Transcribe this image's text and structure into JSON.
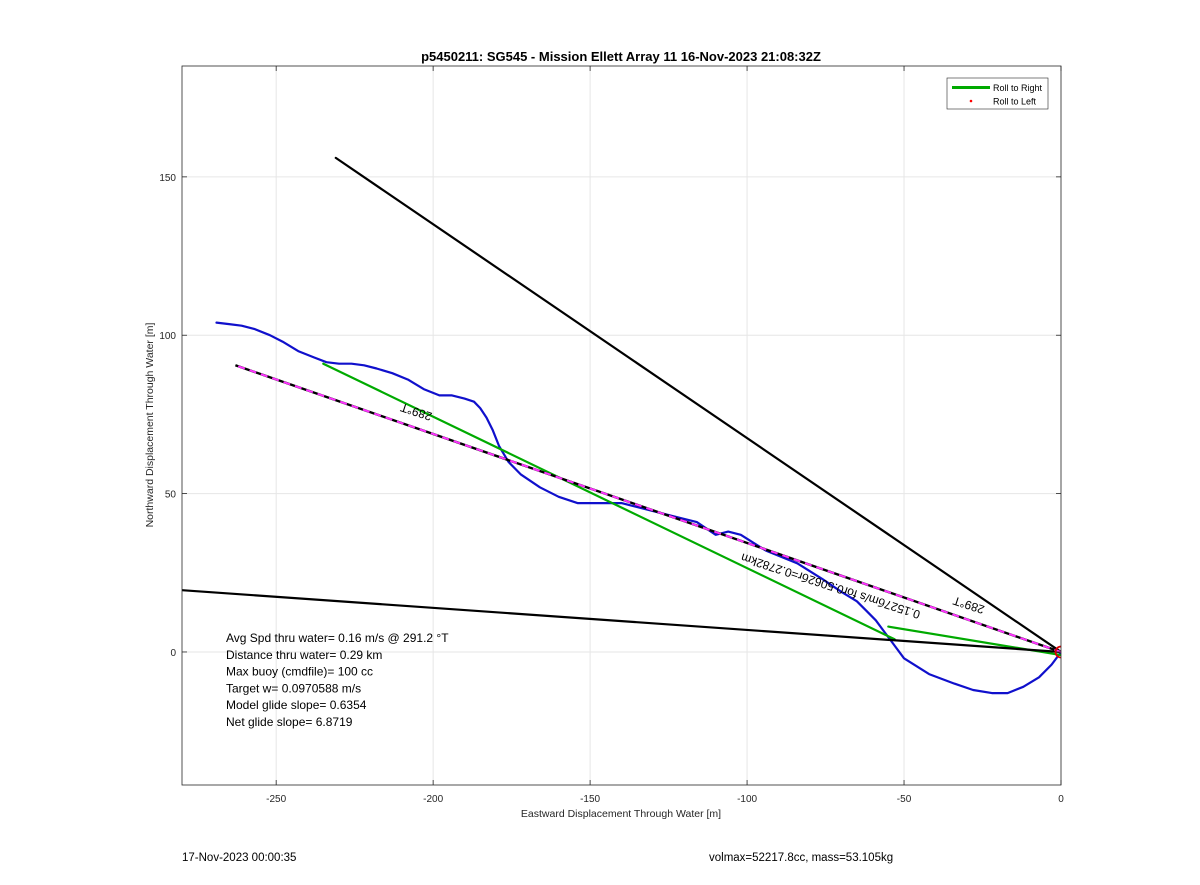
{
  "chart_data": {
    "type": "line",
    "title": "p5450211: SG545 - Mission Ellett Array 11 16-Nov-2023 21:08:32Z",
    "xlabel": "Eastward Displacement Through Water [m]",
    "ylabel": "Northward Displacement Through Water [m]",
    "xlim": [
      -280,
      0
    ],
    "ylim": [
      -42,
      185
    ],
    "xticks": [
      -250,
      -200,
      -150,
      -100,
      -50,
      0
    ],
    "xtick_labels": [
      "-250",
      "-200",
      "-150",
      "-100",
      "-50",
      "0"
    ],
    "yticks": [
      0,
      50,
      100,
      150
    ],
    "ytick_labels": [
      "0",
      "50",
      "100",
      "150"
    ],
    "grid": true,
    "legend": {
      "placement": "top-right",
      "entries": [
        {
          "label": "Roll to Right",
          "color": "#00aa00",
          "style": "solid"
        },
        {
          "label": "Roll to Left",
          "color": "#ff0000",
          "style": "dot"
        }
      ]
    },
    "series": [
      {
        "name": "",
        "color": "#1010cc",
        "style": "solid",
        "x": [
          0,
          -3,
          -7,
          -12,
          -17,
          -22,
          -28,
          -34,
          -42,
          -50,
          -53,
          -56,
          -59,
          -62,
          -65,
          -70,
          -76,
          -84,
          -94,
          -102,
          -106,
          -110,
          -116,
          -124,
          -132,
          -140,
          -148,
          -154,
          -160,
          -166,
          -172,
          -176,
          -179,
          -181,
          -183,
          -185,
          -187,
          -190,
          -194,
          -198,
          -203,
          -208,
          -213,
          -218,
          -222,
          -226,
          -230,
          -234,
          -238,
          -243,
          -248,
          -252,
          -257,
          -261,
          -265,
          -269
        ],
        "y": [
          0,
          -4,
          -8,
          -11,
          -13,
          -13,
          -12,
          -10,
          -7,
          -2,
          2,
          6,
          10,
          13,
          16,
          19,
          23,
          28,
          32,
          37,
          38,
          37,
          41,
          43,
          45,
          47,
          47,
          47,
          49,
          52,
          56,
          60,
          65,
          70,
          74,
          77,
          79,
          80,
          81,
          81,
          83,
          86,
          88,
          89.5,
          90.5,
          91,
          91,
          91.5,
          93,
          95,
          98,
          100,
          102,
          103,
          103.5,
          104
        ]
      },
      {
        "name": "",
        "color": "#00aa00",
        "style": "solid",
        "x": [
          0,
          -55
        ],
        "y": [
          -1,
          8
        ]
      },
      {
        "name": "",
        "color": "#00aa00",
        "style": "solid",
        "x": [
          -53,
          -235
        ],
        "y": [
          4,
          91
        ]
      },
      {
        "name": "",
        "color": "#000000",
        "style": "solid",
        "x": [
          0,
          -231
        ],
        "y": [
          0,
          156
        ]
      },
      {
        "name": "",
        "color": "#000000",
        "style": "solid",
        "x": [
          0,
          -280
        ],
        "y": [
          0,
          19.5
        ]
      },
      {
        "name": "",
        "color": "#000000",
        "style": "dashed-magenta",
        "x": [
          0,
          -263
        ],
        "y": [
          0,
          90.5
        ]
      }
    ],
    "marker": {
      "x": 0,
      "y": 0,
      "color": "#dd0000",
      "shape": "circle"
    },
    "line_labels": [
      {
        "text": "289°T",
        "x": -205,
        "y": 77,
        "angle": 18
      },
      {
        "text": "289°T",
        "x": -29,
        "y": 16,
        "angle": 18
      },
      {
        "text": "0.1527бm/s for0.5062бr=0.2782km",
        "x": -73,
        "y": 22,
        "angle": 18
      }
    ],
    "annotations": [
      "Avg Spd thru water=  0.16 m/s @ 291.2 °T",
      "Distance thru water=  0.29 km",
      "Max buoy (cmdfile)= 100 cc",
      "Target w= 0.0970588 m/s",
      "Model glide slope= 0.6354",
      "Net glide slope= 6.8719"
    ]
  },
  "footer": {
    "left": "17-Nov-2023 00:00:35",
    "right": "volmax=52217.8cc, mass=53.105kg"
  }
}
